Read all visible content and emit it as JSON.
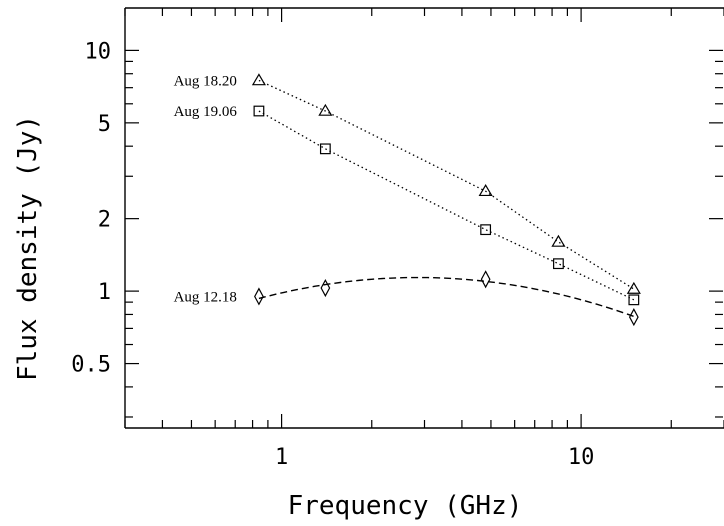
{
  "chart_data": {
    "type": "scatter",
    "title": "",
    "xlabel": "Frequency (GHz)",
    "ylabel": "Flux density (Jy)",
    "x_scale": "log",
    "y_scale": "log",
    "xlim": [
      0.3,
      30
    ],
    "ylim": [
      0.27,
      15
    ],
    "x_ticks": [
      {
        "value": 1,
        "label": "1"
      },
      {
        "value": 10,
        "label": "10"
      }
    ],
    "y_ticks": [
      {
        "value": 0.5,
        "label": "0.5"
      },
      {
        "value": 1,
        "label": "1"
      },
      {
        "value": 2,
        "label": "2"
      },
      {
        "value": 5,
        "label": "5"
      },
      {
        "value": 10,
        "label": "10"
      }
    ],
    "grid": false,
    "series": [
      {
        "name": "Aug 18.20",
        "marker": "triangle",
        "line": "dotted",
        "x": [
          0.84,
          1.4,
          4.8,
          8.4,
          15
        ],
        "y": [
          7.5,
          5.6,
          2.6,
          1.6,
          1.02
        ]
      },
      {
        "name": "Aug 19.06",
        "marker": "square",
        "line": "dotted",
        "x": [
          0.84,
          1.4,
          4.8,
          8.4,
          15
        ],
        "y": [
          5.6,
          3.9,
          1.8,
          1.3,
          0.92
        ]
      },
      {
        "name": "Aug 12.18",
        "marker": "diamond",
        "line": "dashed-fit",
        "x": [
          0.84,
          1.4,
          4.8,
          15
        ],
        "y": [
          0.95,
          1.03,
          1.12,
          0.78
        ]
      }
    ]
  }
}
